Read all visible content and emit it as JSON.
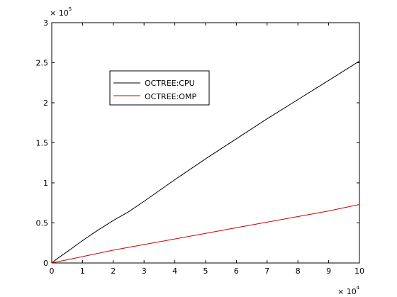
{
  "chart_data": {
    "type": "line",
    "title": "",
    "xlabel": "",
    "ylabel": "",
    "xlim": [
      0,
      100000
    ],
    "ylim": [
      0,
      300000
    ],
    "x_ticks": [
      0,
      10000,
      20000,
      30000,
      40000,
      50000,
      60000,
      70000,
      80000,
      90000,
      100000
    ],
    "x_tick_labels": [
      "0",
      "1",
      "2",
      "3",
      "4",
      "5",
      "6",
      "7",
      "8",
      "9",
      "10"
    ],
    "y_ticks": [
      0,
      50000,
      100000,
      150000,
      200000,
      250000,
      300000
    ],
    "y_tick_labels": [
      "0",
      "0.5",
      "1",
      "1.5",
      "2",
      "2.5",
      "3"
    ],
    "x_multiplier": {
      "base": "× 10",
      "exponent": "4"
    },
    "y_multiplier": {
      "base": "× 10",
      "exponent": "5"
    },
    "grid": false,
    "legend": {
      "placement": "upper-left-inside"
    },
    "series": [
      {
        "name": "OCTREE:CPU",
        "color": "#000000",
        "x": [
          0,
          2000,
          5000,
          10000,
          15000,
          20000,
          25000,
          30000,
          40000,
          50000,
          60000,
          70000,
          80000,
          90000,
          100000
        ],
        "y": [
          0,
          6000,
          14000,
          28000,
          41000,
          53000,
          64000,
          77000,
          104000,
          130000,
          155000,
          180000,
          204000,
          228000,
          252000
        ]
      },
      {
        "name": "OCTREE:OMP",
        "color": "#cc0000",
        "x": [
          0,
          5000,
          10000,
          20000,
          30000,
          40000,
          50000,
          60000,
          70000,
          80000,
          90000,
          100000
        ],
        "y": [
          0,
          4000,
          8000,
          16000,
          23000,
          30000,
          37000,
          44000,
          51000,
          58000,
          65000,
          73000
        ]
      }
    ]
  }
}
